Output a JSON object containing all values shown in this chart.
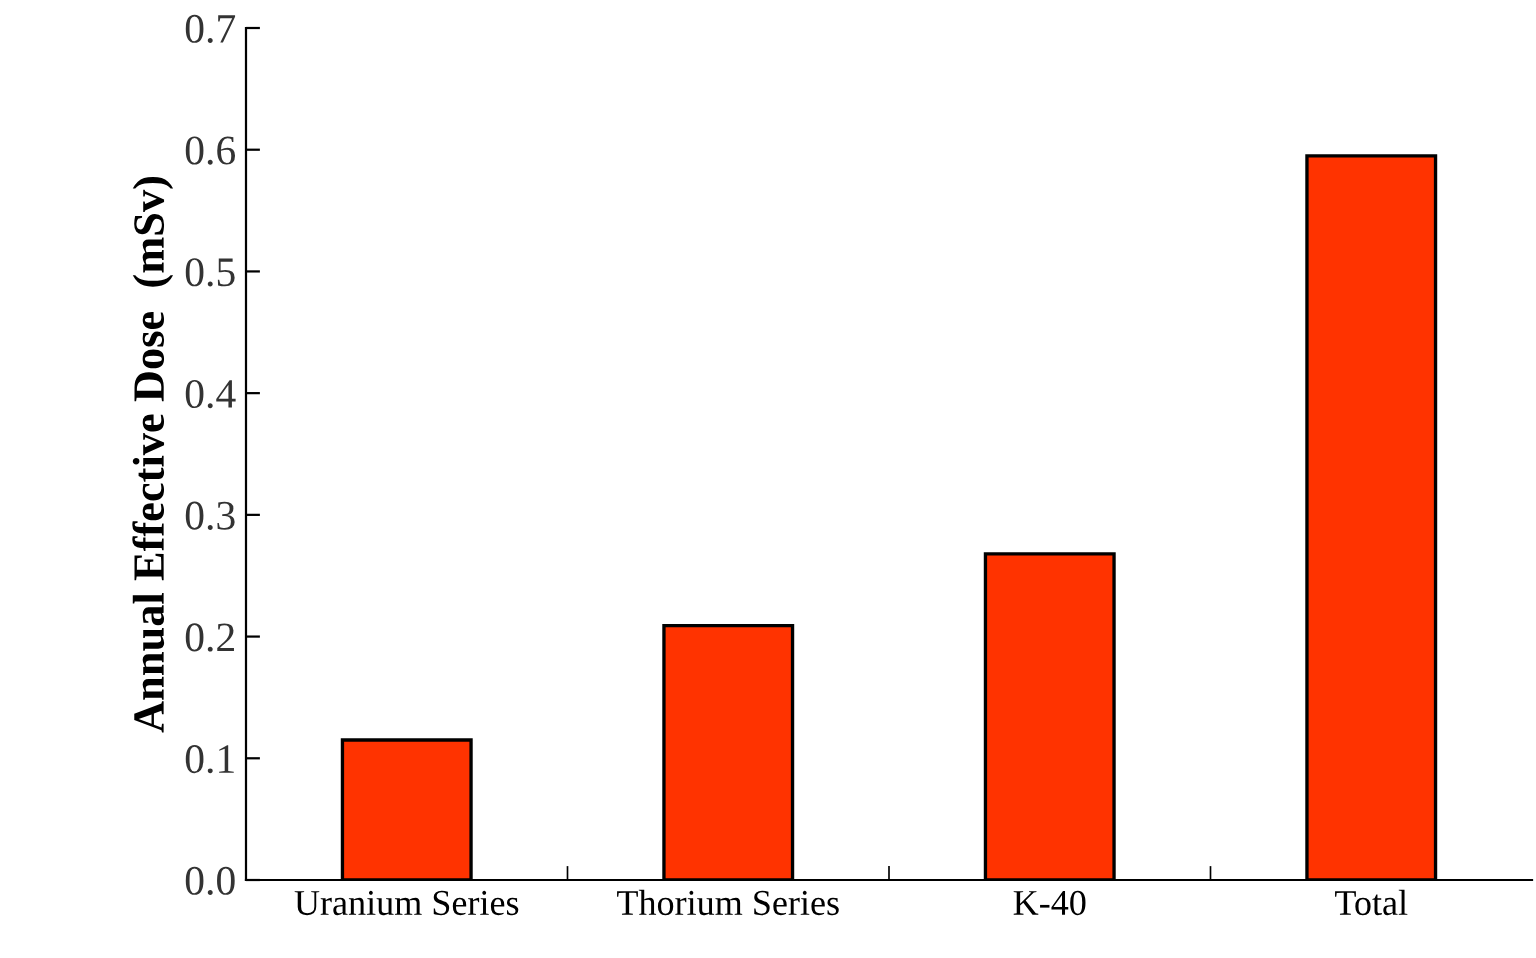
{
  "chart_data": {
    "type": "bar",
    "ylabel": "Annual Effective Dose  (mSv)",
    "categories": [
      "Uranium Series",
      "Thorium Series",
      "K-40",
      "Total"
    ],
    "values": [
      0.115,
      0.209,
      0.268,
      0.595
    ],
    "color": "#ff3300",
    "ylim": [
      0,
      0.7
    ],
    "yticks": [
      {
        "value": 0,
        "label": "0.0"
      },
      0.1,
      0.2,
      0.3,
      0.4,
      0.5,
      0.6,
      0.7
    ],
    "grid": false
  }
}
